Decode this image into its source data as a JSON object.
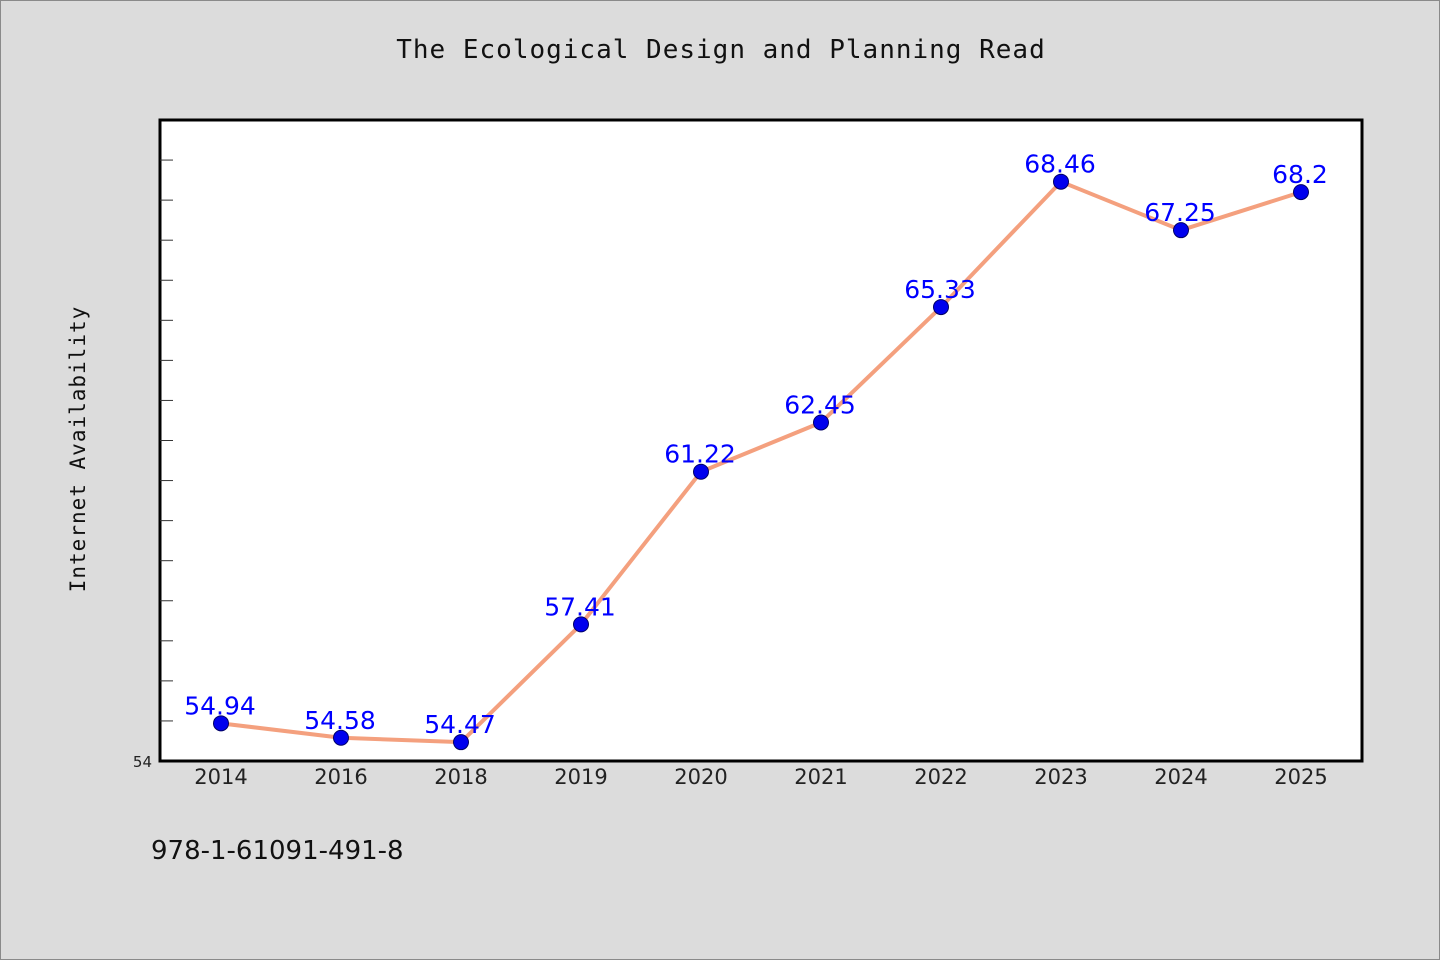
{
  "chart_data": {
    "type": "line",
    "title": "The Ecological Design and Planning Read",
    "xlabel": "",
    "ylabel": "Internet Availability",
    "categories": [
      "2014",
      "2016",
      "2018",
      "2019",
      "2020",
      "2021",
      "2022",
      "2023",
      "2024",
      "2025"
    ],
    "series": [
      {
        "values": [
          54.94,
          54.58,
          54.47,
          57.41,
          61.22,
          62.45,
          65.33,
          68.46,
          67.25,
          68.2
        ],
        "data_labels": [
          "54.94",
          "54.58",
          "54.47",
          "57.41",
          "61.22",
          "62.45",
          "65.33",
          "68.46",
          "67.25",
          "68.2"
        ]
      }
    ],
    "y_tick_labels": [
      "54"
    ],
    "ylim": [
      54,
      70
    ],
    "grid": false,
    "legend": "none",
    "colors": {
      "line": "#f4a07e",
      "marker_fill": "#0000ee",
      "data_label": "#0000ff",
      "plot_background": "#ffffff",
      "page_background": "#dcdcdc"
    }
  },
  "footer": {
    "isbn": "978-1-61091-491-8"
  }
}
